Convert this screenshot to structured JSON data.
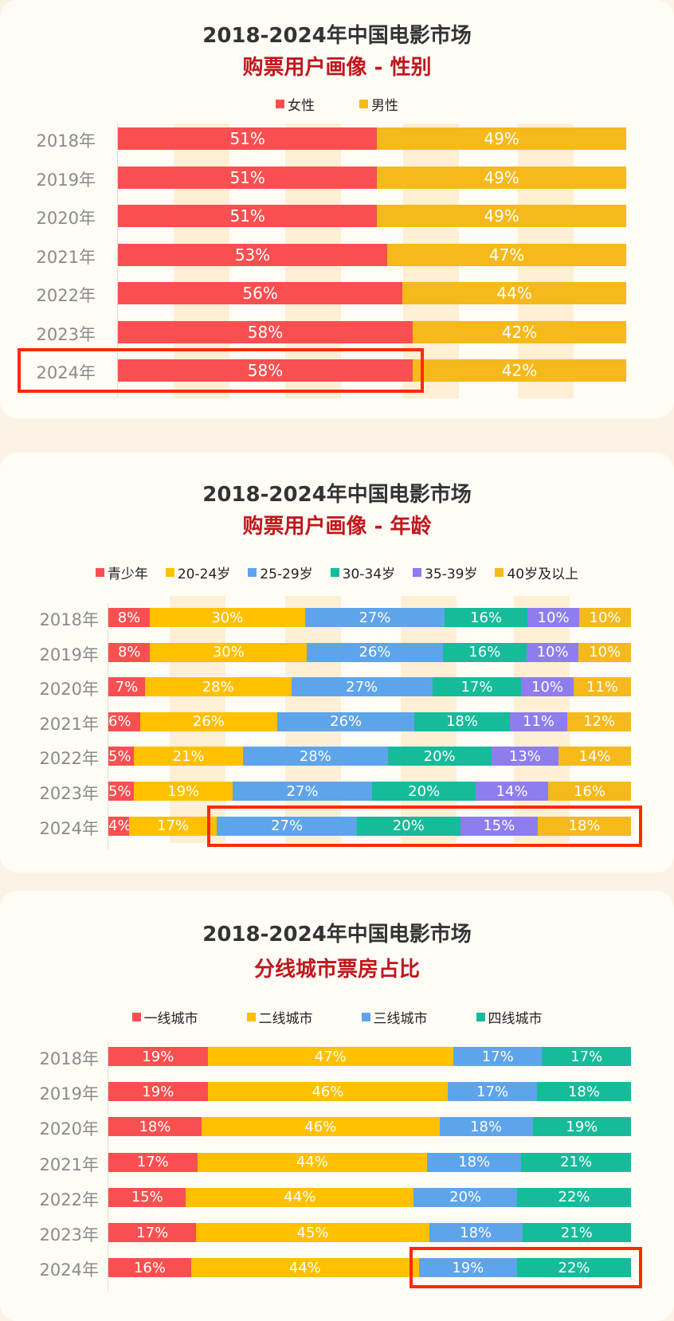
{
  "chart_data": [
    {
      "type": "bar",
      "orientation": "horizontal-stacked-100",
      "title": "2018-2024年中国电影市场",
      "subtitle": "购票用户画像 - 性别",
      "categories": [
        "2018年",
        "2019年",
        "2020年",
        "2021年",
        "2022年",
        "2023年",
        "2024年"
      ],
      "series": [
        {
          "name": "女性",
          "color": "#f94f50",
          "values": [
            51,
            51,
            51,
            53,
            56,
            58,
            58
          ]
        },
        {
          "name": "男性",
          "color": "#f5b91c",
          "values": [
            49,
            49,
            49,
            47,
            44,
            42,
            42
          ]
        }
      ],
      "data_label_suffix": "%",
      "legend": "top-center",
      "highlight": {
        "category": "2024年",
        "series": [
          "女性"
        ]
      }
    },
    {
      "type": "bar",
      "orientation": "horizontal-stacked-100",
      "title": "2018-2024年中国电影市场",
      "subtitle": "购票用户画像 - 年龄",
      "categories": [
        "2018年",
        "2019年",
        "2020年",
        "2021年",
        "2022年",
        "2023年",
        "2024年"
      ],
      "series": [
        {
          "name": "青少年",
          "color": "#f94f50",
          "values": [
            8,
            8,
            7,
            6,
            5,
            5,
            4
          ]
        },
        {
          "name": "20-24岁",
          "color": "#ffc000",
          "values": [
            30,
            30,
            28,
            26,
            21,
            19,
            17
          ]
        },
        {
          "name": "25-29岁",
          "color": "#5ea4ea",
          "values": [
            27,
            26,
            27,
            26,
            28,
            27,
            27
          ]
        },
        {
          "name": "30-34岁",
          "color": "#16bb9a",
          "values": [
            16,
            16,
            17,
            18,
            20,
            20,
            20
          ]
        },
        {
          "name": "35-39岁",
          "color": "#8d7ded",
          "values": [
            10,
            10,
            10,
            11,
            13,
            14,
            15
          ]
        },
        {
          "name": "40岁及以上",
          "color": "#f5b91c",
          "values": [
            10,
            10,
            11,
            12,
            14,
            16,
            18
          ]
        }
      ],
      "data_label_suffix": "%",
      "legend": "top-center",
      "highlight": {
        "category": "2024年",
        "series": [
          "25-29岁",
          "30-34岁",
          "35-39岁",
          "40岁及以上"
        ]
      }
    },
    {
      "type": "bar",
      "orientation": "horizontal-stacked-100",
      "title": "2018-2024年中国电影市场",
      "subtitle": "分线城市票房占比",
      "categories": [
        "2018年",
        "2019年",
        "2020年",
        "2021年",
        "2022年",
        "2023年",
        "2024年"
      ],
      "series": [
        {
          "name": "一线城市",
          "color": "#f94f50",
          "values": [
            19,
            19,
            18,
            17,
            15,
            17,
            16
          ]
        },
        {
          "name": "二线城市",
          "color": "#ffc000",
          "values": [
            47,
            46,
            46,
            44,
            44,
            45,
            44
          ]
        },
        {
          "name": "三线城市",
          "color": "#5ea4ea",
          "values": [
            17,
            17,
            18,
            18,
            20,
            18,
            19
          ]
        },
        {
          "name": "四线城市",
          "color": "#16bb9a",
          "values": [
            17,
            18,
            19,
            21,
            22,
            21,
            22
          ]
        }
      ],
      "data_label_suffix": "%",
      "legend": "top-center",
      "highlight": {
        "category": "2024年",
        "series": [
          "三线城市",
          "四线城市"
        ]
      }
    }
  ]
}
